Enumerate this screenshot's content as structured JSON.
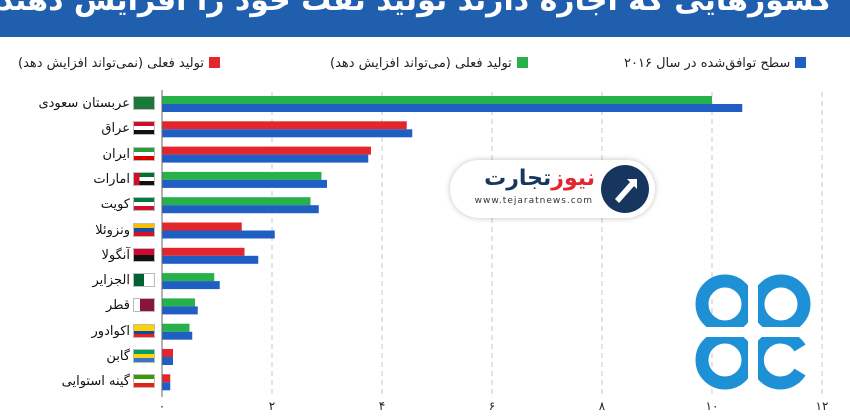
{
  "header": {
    "title": "کشورهایی که اجازه دارند تولید نفت خود را افزایش دهند"
  },
  "legend": [
    {
      "label": "سطح توافق‌شده در سال ۲۰۱۶",
      "color": "#1f5fc4",
      "icon": "blue-square"
    },
    {
      "label": "تولید فعلی (می‌تواند افزایش دهد)",
      "color": "#27b14a",
      "icon": "green-square"
    },
    {
      "label": "تولید فعلی (نمی‌تواند افزایش دهد)",
      "color": "#e3262c",
      "icon": "red-square"
    }
  ],
  "chart_data": {
    "type": "bar",
    "orientation": "horizontal",
    "title": "کشورهایی که اجازه دارند تولید نفت خود را افزایش دهند",
    "xlim": [
      0,
      12
    ],
    "x_ticks": [
      "۰",
      "۲",
      "۴",
      "۶",
      "۸",
      "۱۰",
      "۱۲"
    ],
    "grid": true,
    "legend_position": "top",
    "categories": [
      "عربستان سعودی",
      "عراق",
      "ایران",
      "امارات",
      "کویت",
      "ونزوئلا",
      "آنگولا",
      "الجزایر",
      "قطر",
      "اکوادور",
      "گابن",
      "گینه استوایی"
    ],
    "series": [
      {
        "name": "سطح توافق‌شده در سال ۲۰۱۶",
        "color": "#1f5fc4",
        "values": [
          10.55,
          4.55,
          3.75,
          3.0,
          2.85,
          2.05,
          1.75,
          1.05,
          0.65,
          0.55,
          0.2,
          0.15
        ]
      },
      {
        "name": "تولید فعلی",
        "colors_by_status": {
          "can_increase": "#27b14a",
          "cannot_increase": "#e3262c"
        },
        "status": [
          "can_increase",
          "cannot_increase",
          "cannot_increase",
          "can_increase",
          "can_increase",
          "cannot_increase",
          "cannot_increase",
          "can_increase",
          "can_increase",
          "can_increase",
          "cannot_increase",
          "cannot_increase"
        ],
        "values": [
          10.0,
          4.45,
          3.8,
          2.9,
          2.7,
          1.45,
          1.5,
          0.95,
          0.6,
          0.5,
          0.2,
          0.15
        ]
      }
    ]
  },
  "flags": [
    "saudi-flag-icon",
    "iraq-flag-icon",
    "iran-flag-icon",
    "uae-flag-icon",
    "kuwait-flag-icon",
    "venezuela-flag-icon",
    "angola-flag-icon",
    "algeria-flag-icon",
    "qatar-flag-icon",
    "ecuador-flag-icon",
    "gabon-flag-icon",
    "equatorial-guinea-flag-icon"
  ],
  "watermark": {
    "name_part1": "تجارت",
    "name_part2": "نیوز",
    "url": "www.tejaratnews.com"
  },
  "opec_logo": {
    "color": "#1e90d6"
  }
}
